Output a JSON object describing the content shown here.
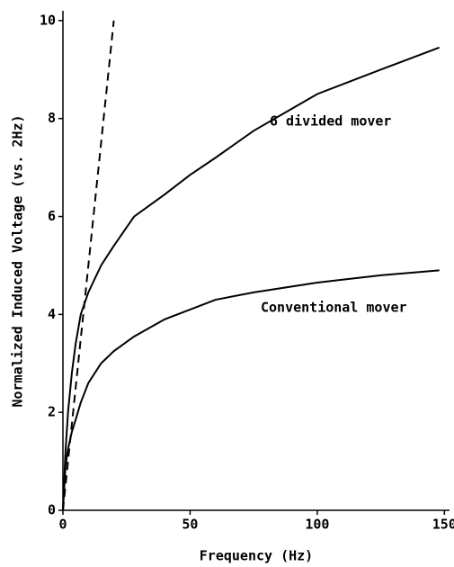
{
  "chart_data": {
    "type": "line",
    "xlabel": "Frequency (Hz)",
    "ylabel": "Normalized Induced Voltage (vs. 2Hz)",
    "xlim": [
      0,
      152
    ],
    "ylim": [
      0,
      10.2
    ],
    "xticks": [
      0,
      50,
      100,
      150
    ],
    "yticks": [
      0,
      2,
      4,
      6,
      8,
      10
    ],
    "series": [
      {
        "name": "6 divided mover",
        "color": "#000000",
        "dash": false,
        "x": [
          0,
          1,
          2,
          3.5,
          5,
          7,
          10,
          15,
          20,
          28,
          40,
          50,
          60,
          75,
          100,
          125,
          148
        ],
        "values": [
          0,
          1.2,
          2.0,
          2.8,
          3.4,
          4.0,
          4.45,
          5.0,
          5.4,
          6.0,
          6.45,
          6.85,
          7.2,
          7.75,
          8.5,
          9.0,
          9.45
        ]
      },
      {
        "name": "Conventional mover",
        "color": "#000000",
        "dash": false,
        "x": [
          0,
          1,
          2,
          3.5,
          5,
          7,
          10,
          15,
          20,
          28,
          40,
          50,
          60,
          75,
          100,
          125,
          148
        ],
        "values": [
          0,
          0.9,
          1.25,
          1.6,
          1.85,
          2.2,
          2.6,
          3.0,
          3.25,
          3.55,
          3.9,
          4.1,
          4.3,
          4.45,
          4.65,
          4.8,
          4.9
        ]
      },
      {
        "color": "#000000",
        "dash": true,
        "x": [
          0,
          20
        ],
        "values": [
          0,
          10
        ]
      }
    ]
  }
}
